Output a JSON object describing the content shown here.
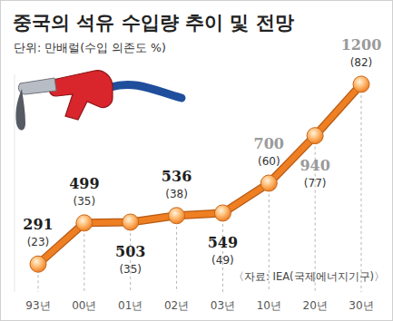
{
  "chart_data": {
    "type": "line",
    "title": "중국의 석유 수입량 추이 및 전망",
    "subtitle": "단위: 만배럴(수입 의존도 %)",
    "source": "〈자료: IEA(국제에너지기구)〉",
    "categories": [
      "93년",
      "00년",
      "01년",
      "02년",
      "03년",
      "10년",
      "20년",
      "30년"
    ],
    "series": [
      {
        "values": [
          291,
          499,
          503,
          536,
          549,
          700,
          940,
          1200
        ],
        "dependency_labels": [
          "(23)",
          "(35)",
          "(35)",
          "(38)",
          "(49)",
          "(60)",
          "(77)",
          "(82)"
        ],
        "color": "#ee7f22",
        "marker": "circle",
        "line_style": "solid"
      }
    ],
    "ylim": [
      150,
      1250
    ],
    "tick_labels": "x",
    "data_labels": true,
    "grid": false
  }
}
